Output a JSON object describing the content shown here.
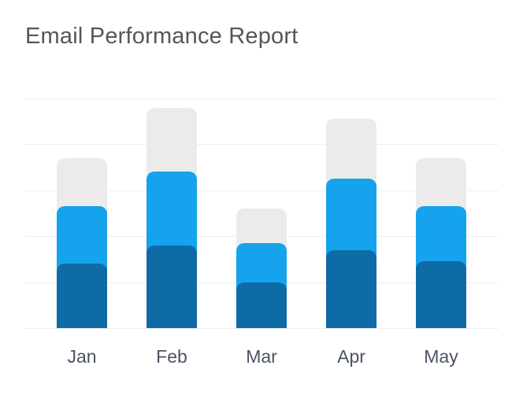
{
  "header": {
    "title": "Email Performance Report"
  },
  "colors": {
    "background": "#ffffff",
    "title_text": "#55565b",
    "axis_label_text": "#4a5366",
    "gridline": "#eeeeee",
    "bar_gray": "#ebebeb",
    "bar_light_blue": "#14a3ec",
    "bar_dark_blue": "#0e6ba6"
  },
  "chart_data": {
    "type": "bar",
    "layout_variant": "overlapping-bars",
    "title": "Email Performance Report",
    "categories": [
      "Jan",
      "Feb",
      "Mar",
      "Apr",
      "May"
    ],
    "series": [
      {
        "name": "gray",
        "color": "#ebebeb",
        "values": [
          74,
          96,
          52,
          91,
          74
        ]
      },
      {
        "name": "light-blue",
        "color": "#14a3ec",
        "values": [
          53,
          68,
          37,
          65,
          53
        ]
      },
      {
        "name": "dark-blue",
        "color": "#0e6ba6",
        "values": [
          28,
          36,
          20,
          34,
          29
        ]
      }
    ],
    "xlabel": "",
    "ylabel": "",
    "ylim": [
      0,
      100
    ],
    "gridlines": {
      "horizontal_count": 6,
      "visible": true
    },
    "legend": "none",
    "y_tick_labels": "none"
  }
}
